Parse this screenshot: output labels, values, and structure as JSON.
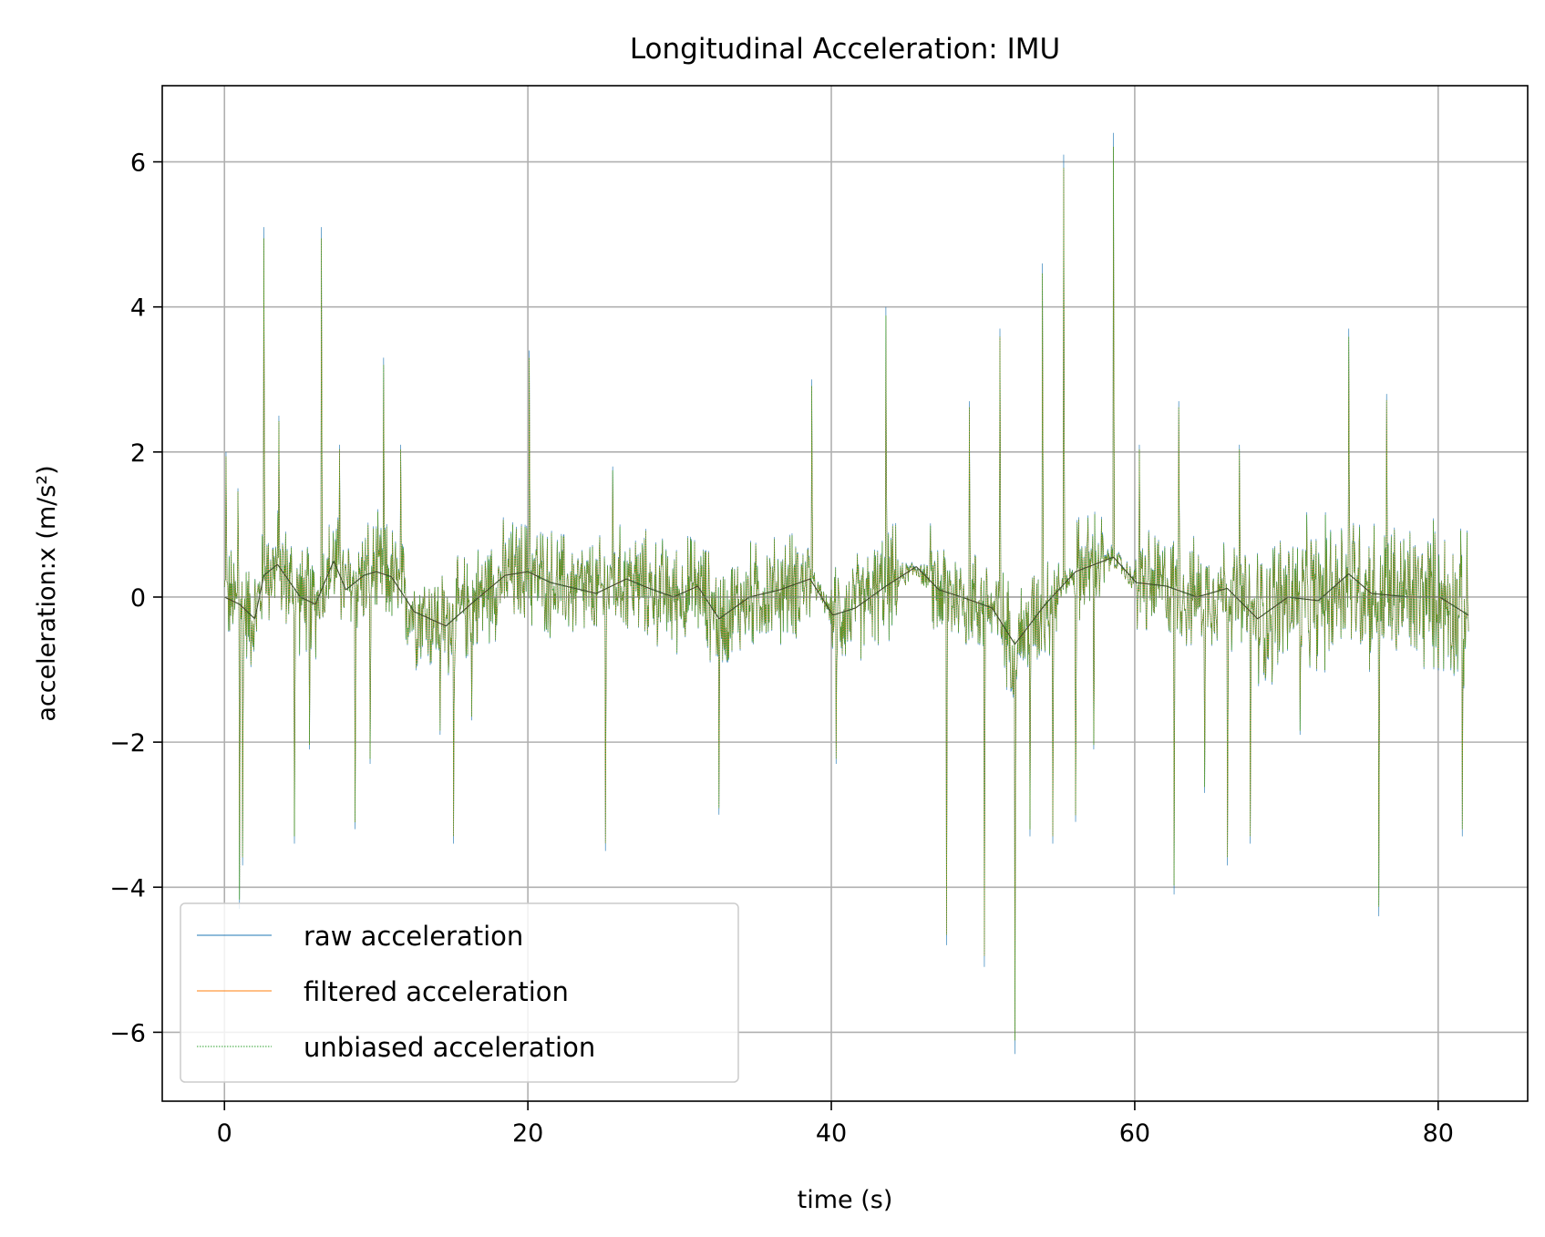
{
  "chart_data": {
    "type": "line",
    "title": "Longitudinal Acceleration: IMU",
    "xlabel": "time (s)",
    "ylabel": "acceleration:x (m/s²)",
    "xlim": [
      -4.1,
      85.9
    ],
    "ylim": [
      -6.95,
      7.05
    ],
    "xticks": [
      0,
      20,
      40,
      60,
      80
    ],
    "yticks": [
      -6,
      -4,
      -2,
      0,
      2,
      4,
      6
    ],
    "xtick_labels": [
      "0",
      "20",
      "40",
      "60",
      "80"
    ],
    "ytick_labels": [
      "−6",
      "−4",
      "−2",
      "0",
      "2",
      "4",
      "6"
    ],
    "grid": true,
    "legend_position": "lower-left",
    "time_range": [
      0,
      82
    ],
    "series": [
      {
        "name": "raw acceleration",
        "color": "#1f77b4",
        "style": "solid"
      },
      {
        "name": "filtered acceleration",
        "color": "#ff7f0e",
        "style": "solid"
      },
      {
        "name": "unbiased acceleration",
        "color": "#2ca02c",
        "style": "dotted"
      }
    ],
    "spikes": [
      [
        0.1,
        2.0
      ],
      [
        0.9,
        1.5
      ],
      [
        1.0,
        -4.3
      ],
      [
        1.2,
        -3.7
      ],
      [
        2.6,
        5.1
      ],
      [
        3.6,
        2.5
      ],
      [
        4.6,
        -3.4
      ],
      [
        5.6,
        -2.1
      ],
      [
        6.4,
        5.1
      ],
      [
        7.6,
        2.1
      ],
      [
        8.6,
        -3.2
      ],
      [
        9.6,
        -2.3
      ],
      [
        10.5,
        3.3
      ],
      [
        11.6,
        2.1
      ],
      [
        14.2,
        -1.9
      ],
      [
        15.1,
        -3.4
      ],
      [
        16.3,
        -1.7
      ],
      [
        20.1,
        3.4
      ],
      [
        25.1,
        -3.5
      ],
      [
        25.6,
        1.8
      ],
      [
        32.6,
        -3.0
      ],
      [
        38.7,
        3.0
      ],
      [
        40.3,
        -2.3
      ],
      [
        43.6,
        4.0
      ],
      [
        47.6,
        -4.8
      ],
      [
        49.1,
        2.7
      ],
      [
        50.1,
        -5.1
      ],
      [
        51.1,
        3.7
      ],
      [
        52.1,
        -6.3
      ],
      [
        53.1,
        -3.3
      ],
      [
        53.9,
        4.6
      ],
      [
        54.6,
        -3.4
      ],
      [
        55.3,
        6.1
      ],
      [
        56.1,
        -3.1
      ],
      [
        57.3,
        -2.1
      ],
      [
        58.6,
        6.4
      ],
      [
        60.3,
        2.1
      ],
      [
        62.6,
        -4.1
      ],
      [
        62.9,
        2.7
      ],
      [
        64.6,
        -2.7
      ],
      [
        66.1,
        -3.7
      ],
      [
        66.9,
        2.1
      ],
      [
        67.6,
        -3.4
      ],
      [
        70.9,
        -1.9
      ],
      [
        74.1,
        3.7
      ],
      [
        76.1,
        -4.4
      ],
      [
        76.6,
        2.8
      ],
      [
        81.6,
        -3.3
      ]
    ],
    "bias_trend": [
      [
        0,
        0.0
      ],
      [
        1,
        -0.1
      ],
      [
        2,
        -0.3
      ],
      [
        2.6,
        0.3
      ],
      [
        3.5,
        0.45
      ],
      [
        5,
        0.0
      ],
      [
        6,
        -0.1
      ],
      [
        7.2,
        0.5
      ],
      [
        8,
        0.1
      ],
      [
        9.2,
        0.3
      ],
      [
        10,
        0.35
      ],
      [
        11,
        0.28
      ],
      [
        12.5,
        -0.2
      ],
      [
        14.6,
        -0.4
      ],
      [
        16.5,
        -0.05
      ],
      [
        18.5,
        0.3
      ],
      [
        20,
        0.35
      ],
      [
        21.5,
        0.2
      ],
      [
        24.5,
        0.05
      ],
      [
        26.5,
        0.25
      ],
      [
        28,
        0.12
      ],
      [
        29.6,
        0.0
      ],
      [
        31.2,
        0.15
      ],
      [
        32.6,
        -0.3
      ],
      [
        34.6,
        0.0
      ],
      [
        36.6,
        0.1
      ],
      [
        38.6,
        0.25
      ],
      [
        40.1,
        -0.25
      ],
      [
        41.6,
        -0.15
      ],
      [
        43.6,
        0.15
      ],
      [
        45.6,
        0.42
      ],
      [
        47.1,
        0.1
      ],
      [
        48.6,
        0.0
      ],
      [
        50.6,
        -0.15
      ],
      [
        52.1,
        -0.65
      ],
      [
        54.1,
        -0.1
      ],
      [
        56.1,
        0.35
      ],
      [
        58.6,
        0.55
      ],
      [
        60.1,
        0.2
      ],
      [
        62.1,
        0.15
      ],
      [
        64.1,
        0.0
      ],
      [
        66.1,
        0.12
      ],
      [
        68.1,
        -0.3
      ],
      [
        70.1,
        0.0
      ],
      [
        72.1,
        -0.05
      ],
      [
        74.1,
        0.32
      ],
      [
        75.6,
        0.05
      ],
      [
        78.1,
        0.0
      ],
      [
        80.1,
        0.0
      ],
      [
        82,
        -0.25
      ]
    ]
  }
}
